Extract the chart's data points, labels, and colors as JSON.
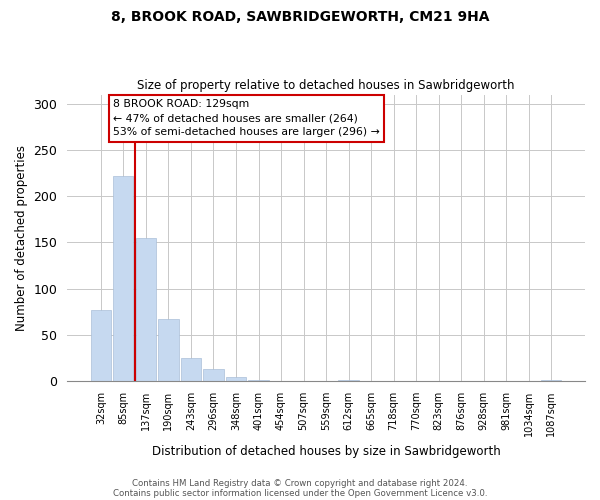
{
  "title": "8, BROOK ROAD, SAWBRIDGEWORTH, CM21 9HA",
  "subtitle": "Size of property relative to detached houses in Sawbridgeworth",
  "xlabel": "Distribution of detached houses by size in Sawbridgeworth",
  "ylabel": "Number of detached properties",
  "bar_labels": [
    "32sqm",
    "85sqm",
    "137sqm",
    "190sqm",
    "243sqm",
    "296sqm",
    "348sqm",
    "401sqm",
    "454sqm",
    "507sqm",
    "559sqm",
    "612sqm",
    "665sqm",
    "718sqm",
    "770sqm",
    "823sqm",
    "876sqm",
    "928sqm",
    "981sqm",
    "1034sqm",
    "1087sqm"
  ],
  "bar_heights": [
    77,
    222,
    155,
    67,
    25,
    13,
    4,
    1,
    0,
    0,
    0,
    1,
    0,
    0,
    0,
    0,
    0,
    0,
    0,
    0,
    1
  ],
  "bar_color": "#c6d9f0",
  "bar_edge_color": "#aabfd8",
  "vline_color": "#cc0000",
  "vline_x_index": 1.5,
  "ylim": [
    0,
    310
  ],
  "yticks": [
    0,
    50,
    100,
    150,
    200,
    250,
    300
  ],
  "annotation_text": "8 BROOK ROAD: 129sqm\n← 47% of detached houses are smaller (264)\n53% of semi-detached houses are larger (296) →",
  "annotation_box_color": "#ffffff",
  "annotation_box_edge": "#cc0000",
  "footer_line1": "Contains HM Land Registry data © Crown copyright and database right 2024.",
  "footer_line2": "Contains public sector information licensed under the Open Government Licence v3.0.",
  "background_color": "#ffffff",
  "grid_color": "#c8c8c8"
}
